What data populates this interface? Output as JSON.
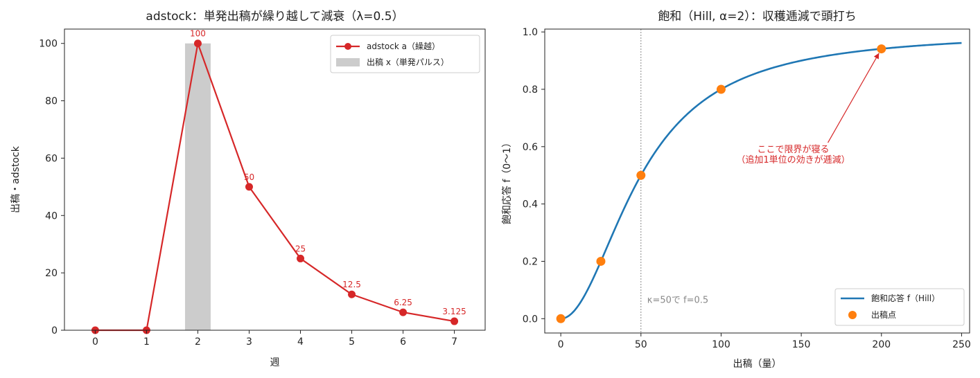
{
  "chart_data": [
    {
      "type": "line",
      "title": "adstock：単発出稿が繰り越して減衰（λ=0.5）",
      "xlabel": "週",
      "ylabel": "出稿・adstock",
      "xlim": [
        -0.6,
        7.6
      ],
      "ylim": [
        0,
        105
      ],
      "xticks": [
        "0",
        "1",
        "2",
        "3",
        "4",
        "5",
        "6",
        "7"
      ],
      "yticks": [
        "0",
        "20",
        "40",
        "60",
        "80",
        "100"
      ],
      "grid": false,
      "legend_position": "top-right",
      "colors": {
        "adstock": "#d62728",
        "pulse": "#cccccc"
      },
      "series": [
        {
          "name": "adstock a（繰越）",
          "kind": "line",
          "x": [
            0,
            1,
            2,
            3,
            4,
            5,
            6,
            7
          ],
          "values": [
            0,
            0,
            100,
            50,
            25,
            12.5,
            6.25,
            3.125
          ]
        },
        {
          "name": "出稿 x（単発パルス）",
          "kind": "bar",
          "x": [
            2
          ],
          "values": [
            100
          ]
        }
      ],
      "data_labels": [
        {
          "x": 2,
          "y": 100,
          "text": "100"
        },
        {
          "x": 3,
          "y": 50,
          "text": "50"
        },
        {
          "x": 4,
          "y": 25,
          "text": "25"
        },
        {
          "x": 5,
          "y": 12.5,
          "text": "12.5"
        },
        {
          "x": 6,
          "y": 6.25,
          "text": "6.25"
        },
        {
          "x": 7,
          "y": 3.125,
          "text": "3.125"
        }
      ]
    },
    {
      "type": "line",
      "title": "飽和（Hill, α=2）：収穫逓減で頭打ち",
      "xlabel": "出稿（量）",
      "ylabel": "飽和応答 f（0〜1）",
      "xlim": [
        -10,
        255
      ],
      "ylim": [
        -0.05,
        1.01
      ],
      "xticks": [
        "0",
        "50",
        "100",
        "150",
        "200",
        "250"
      ],
      "yticks": [
        "0.0",
        "0.2",
        "0.4",
        "0.6",
        "0.8",
        "1.0"
      ],
      "grid": false,
      "legend_position": "bottom-right",
      "hill": {
        "kappa": 50,
        "alpha": 2,
        "x_range": [
          0,
          250
        ]
      },
      "colors": {
        "curve": "#1f77b4",
        "points": "#ff7f0e",
        "annotation": "#d62728",
        "vline": "#888888"
      },
      "series": [
        {
          "name": "飽和応答 f（Hill）",
          "kind": "curve"
        },
        {
          "name": "出稿点",
          "kind": "scatter",
          "x": [
            0,
            25,
            50,
            100,
            200
          ],
          "values": [
            0,
            0.2,
            0.5,
            0.8,
            0.941
          ]
        }
      ],
      "vline": {
        "x": 50,
        "label": "κ=50で f=0.5"
      },
      "annotation": {
        "lines": [
          "ここで限界が寝る",
          "（追加1単位の効きが逓減）"
        ],
        "point": {
          "x": 200,
          "y": 0.941
        },
        "text_pos": {
          "x": 145,
          "y": 0.58
        }
      }
    }
  ]
}
